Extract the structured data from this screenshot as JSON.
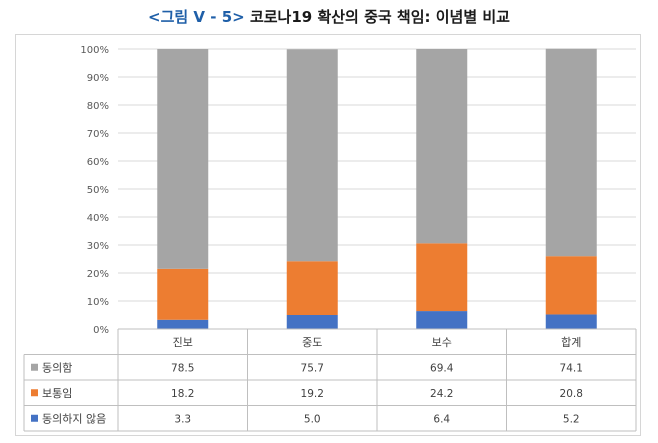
{
  "title": {
    "prefix": "<그림 Ⅴ - 5>",
    "text": "코로나19 확산의 중국 책임: 이념별 비교"
  },
  "chart_data": {
    "type": "bar",
    "stacked": true,
    "normalized": true,
    "categories": [
      "진보",
      "중도",
      "보수",
      "합계"
    ],
    "y_ticks": [
      "0%",
      "10%",
      "20%",
      "30%",
      "40%",
      "50%",
      "60%",
      "70%",
      "80%",
      "90%",
      "100%"
    ],
    "ylim": [
      0,
      100
    ],
    "grid": true,
    "legend": "table-left",
    "series": [
      {
        "name": "동의함",
        "values": [
          78.5,
          75.7,
          69.4,
          74.1
        ],
        "labels": [
          "78.5",
          "75.7",
          "69.4",
          "74.1"
        ],
        "color": "#a5a5a5"
      },
      {
        "name": "보통임",
        "values": [
          18.2,
          19.2,
          24.2,
          20.8
        ],
        "labels": [
          "18.2",
          "19.2",
          "24.2",
          "20.8"
        ],
        "color": "#ed7d31"
      },
      {
        "name": "동의하지 않음",
        "values": [
          3.3,
          5.0,
          6.4,
          5.2
        ],
        "labels": [
          "3.3",
          "5.0",
          "6.4",
          "5.2"
        ],
        "color": "#4472c4"
      }
    ]
  }
}
